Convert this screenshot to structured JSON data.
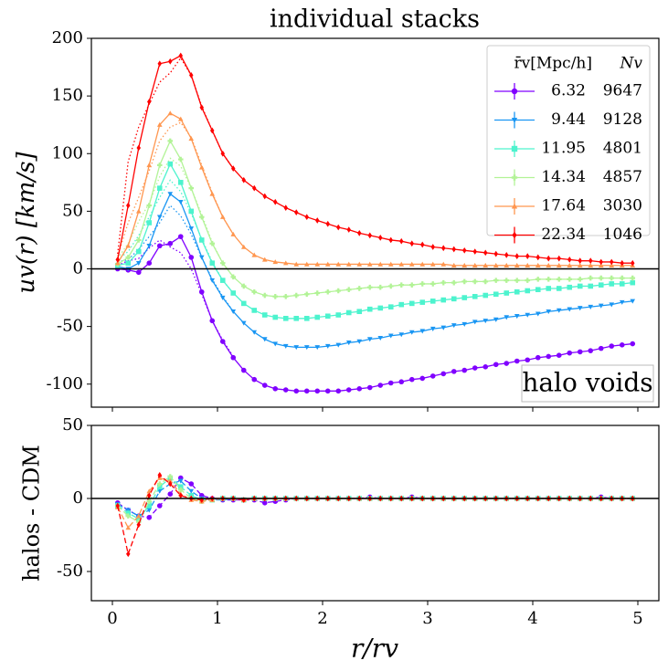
{
  "chart_data": [
    {
      "type": "line",
      "title": "individual stacks",
      "ylabel": "uv(r) [km/s]",
      "annotation": "halo voids",
      "legend_header": [
        "r̄v[Mpc/h]",
        "Nv"
      ],
      "legend": "upper right",
      "xlim": [
        -0.2,
        5.2
      ],
      "xticks": [
        0,
        1,
        2,
        3,
        4,
        5
      ],
      "ylim": [
        -120,
        200
      ],
      "yticks": [
        -100,
        -50,
        0,
        50,
        100,
        150,
        200
      ],
      "hline": 0,
      "x": [
        0.05,
        0.15,
        0.25,
        0.35,
        0.45,
        0.55,
        0.65,
        0.75,
        0.85,
        0.95,
        1.05,
        1.15,
        1.25,
        1.35,
        1.45,
        1.55,
        1.65,
        1.75,
        1.85,
        1.95,
        2.05,
        2.15,
        2.25,
        2.35,
        2.45,
        2.55,
        2.65,
        2.75,
        2.85,
        2.95,
        3.05,
        3.15,
        3.25,
        3.35,
        3.45,
        3.55,
        3.65,
        3.75,
        3.85,
        3.95,
        4.05,
        4.15,
        4.25,
        4.35,
        4.45,
        4.55,
        4.65,
        4.75,
        4.85,
        4.95
      ],
      "series": [
        {
          "name": "6.32",
          "count": "9647",
          "color": "#8000ff",
          "marker": "o",
          "values": [
            0,
            -1,
            -3,
            5,
            20,
            22,
            28,
            10,
            -20,
            -45,
            -63,
            -77,
            -88,
            -96,
            -101,
            -104,
            -105,
            -106,
            -106,
            -106,
            -106,
            -106,
            -105,
            -104,
            -103,
            -101,
            -99,
            -98,
            -96,
            -95,
            -93,
            -91,
            -89,
            -88,
            -86,
            -85,
            -83,
            -82,
            -80,
            -79,
            -77,
            -76,
            -75,
            -73,
            -72,
            -71,
            -69,
            -67,
            -66,
            -65
          ]
        },
        {
          "name": "9.44",
          "count": "9128",
          "color": "#1996f3",
          "marker": "v",
          "values": [
            2,
            0,
            5,
            20,
            45,
            65,
            58,
            35,
            10,
            -10,
            -25,
            -37,
            -47,
            -55,
            -61,
            -65,
            -67,
            -68,
            -68,
            -68,
            -67,
            -66,
            -64,
            -63,
            -61,
            -60,
            -58,
            -57,
            -55,
            -54,
            -52,
            -51,
            -49,
            -48,
            -46,
            -45,
            -44,
            -42,
            -41,
            -40,
            -39,
            -37,
            -36,
            -35,
            -34,
            -33,
            -32,
            -31,
            -29,
            -28
          ]
        },
        {
          "name": "11.95",
          "count": "4801",
          "color": "#4df3ce",
          "marker": "s",
          "values": [
            3,
            5,
            15,
            40,
            70,
            91,
            75,
            50,
            25,
            5,
            -10,
            -21,
            -30,
            -36,
            -40,
            -42,
            -43,
            -43,
            -43,
            -42,
            -41,
            -40,
            -38,
            -37,
            -35,
            -34,
            -33,
            -31,
            -30,
            -29,
            -28,
            -27,
            -26,
            -25,
            -24,
            -23,
            -22,
            -21,
            -20,
            -19,
            -18,
            -17,
            -17,
            -16,
            -15,
            -15,
            -14,
            -13,
            -13,
            -12
          ]
        },
        {
          "name": "14.34",
          "count": "4857",
          "color": "#b2f396",
          "marker": "P",
          "values": [
            4,
            10,
            25,
            55,
            90,
            111,
            95,
            70,
            45,
            22,
            5,
            -7,
            -15,
            -20,
            -23,
            -24,
            -24,
            -23,
            -22,
            -21,
            -20,
            -19,
            -18,
            -17,
            -16,
            -16,
            -15,
            -14,
            -14,
            -13,
            -13,
            -12,
            -12,
            -11,
            -11,
            -11,
            -10,
            -10,
            -10,
            -10,
            -9,
            -9,
            -9,
            -9,
            -9,
            -8,
            -8,
            -8,
            -8,
            -8
          ]
        },
        {
          "name": "17.64",
          "count": "3030",
          "color": "#ff964f",
          "marker": "^",
          "values": [
            5,
            20,
            50,
            90,
            125,
            135,
            130,
            113,
            88,
            65,
            45,
            30,
            19,
            12,
            8,
            6,
            5,
            4,
            4,
            4,
            4,
            4,
            4,
            4,
            4,
            4,
            4,
            4,
            4,
            4,
            4,
            4,
            3,
            3,
            3,
            3,
            3,
            3,
            3,
            3,
            3,
            3,
            3,
            3,
            3,
            3,
            3,
            3,
            3,
            3
          ]
        },
        {
          "name": "22.34",
          "count": "1046",
          "color": "#ff0000",
          "marker": "d",
          "values": [
            8,
            55,
            105,
            145,
            178,
            180,
            185,
            168,
            140,
            120,
            100,
            87,
            77,
            70,
            63,
            58,
            53,
            49,
            45,
            42,
            39,
            36,
            34,
            31,
            29,
            27,
            25,
            24,
            22,
            21,
            19,
            18,
            17,
            16,
            15,
            14,
            13,
            12,
            11,
            11,
            10,
            9,
            9,
            8,
            7,
            7,
            6,
            6,
            5,
            5
          ]
        }
      ],
      "cdm_series": [
        {
          "color": "#8000ff",
          "style": "dotted",
          "x": [
            0.05,
            0.15,
            0.25,
            0.35,
            0.45,
            0.55,
            0.65,
            0.75,
            0.85,
            0.95,
            1.05,
            1.15
          ],
          "values": [
            3,
            7,
            9,
            18,
            25,
            19,
            14,
            0,
            -22,
            -45,
            -62,
            -76
          ]
        },
        {
          "color": "#1996f3",
          "style": "dotted",
          "x": [
            0.05,
            0.15,
            0.25,
            0.35,
            0.45,
            0.55,
            0.65,
            0.75,
            0.85,
            0.95,
            1.05,
            1.15
          ],
          "values": [
            6,
            8,
            17,
            28,
            40,
            55,
            46,
            30,
            10,
            -9,
            -24,
            -37
          ]
        },
        {
          "color": "#4df3ce",
          "style": "dotted",
          "x": [
            0.05,
            0.15,
            0.25,
            0.35,
            0.45,
            0.55,
            0.65,
            0.75,
            0.85,
            0.95,
            1.05,
            1.15
          ],
          "values": [
            8,
            15,
            29,
            45,
            62,
            77,
            67,
            48,
            26,
            6,
            -10,
            -21
          ]
        },
        {
          "color": "#b2f396",
          "style": "dotted",
          "x": [
            0.05,
            0.15,
            0.25,
            0.35,
            0.45,
            0.55,
            0.65,
            0.75,
            0.85,
            0.95,
            1.05,
            1.15
          ],
          "values": [
            9,
            22,
            41,
            57,
            80,
            96,
            89,
            70,
            47,
            23,
            5,
            -7
          ]
        },
        {
          "color": "#ff964f",
          "style": "dotted",
          "x": [
            0.05,
            0.15,
            0.25,
            0.35,
            0.45,
            0.55,
            0.65,
            0.75,
            0.85,
            0.95,
            1.05,
            1.15
          ],
          "values": [
            11,
            40,
            62,
            85,
            111,
            123,
            127,
            114,
            90,
            66,
            45,
            30
          ]
        },
        {
          "color": "#ff0000",
          "style": "dotted",
          "x": [
            0.05,
            0.15,
            0.25,
            0.35,
            0.45,
            0.55,
            0.65,
            0.75,
            0.85,
            0.95,
            1.05,
            1.15
          ],
          "values": [
            13,
            93,
            123,
            143,
            162,
            170,
            183,
            168,
            141,
            120,
            100,
            87
          ]
        }
      ]
    },
    {
      "type": "line",
      "ylabel": "halos - CDM",
      "xlabel": "r/rv",
      "style": "dashed",
      "xlim": [
        -0.2,
        5.2
      ],
      "xticks": [
        0,
        1,
        2,
        3,
        4,
        5
      ],
      "ylim": [
        -70,
        50
      ],
      "yticks": [
        -50,
        0,
        50
      ],
      "hline": 0,
      "x": [
        0.05,
        0.15,
        0.25,
        0.35,
        0.45,
        0.55,
        0.65,
        0.75,
        0.85,
        0.95,
        1.05,
        1.15,
        1.25,
        1.35,
        1.45,
        1.55,
        1.65,
        1.75,
        1.85,
        1.95,
        2.05,
        2.15,
        2.25,
        2.35,
        2.45,
        2.55,
        2.65,
        2.75,
        2.85,
        2.95,
        3.05,
        3.15,
        3.25,
        3.35,
        3.45,
        3.55,
        3.65,
        3.75,
        3.85,
        3.95,
        4.05,
        4.15,
        4.25,
        4.35,
        4.45,
        4.55,
        4.65,
        4.75,
        4.85,
        4.95
      ],
      "series": [
        {
          "color": "#8000ff",
          "marker": "o",
          "values": [
            -3,
            -8,
            -12,
            -13,
            -5,
            3,
            14,
            10,
            2,
            0,
            -1,
            -1,
            -1,
            -1,
            -3,
            -2,
            -1,
            0,
            0,
            0,
            0,
            0,
            0,
            0,
            1,
            0,
            0,
            0,
            1,
            0,
            0,
            0,
            0,
            0,
            0,
            0,
            0,
            0,
            0,
            0,
            0,
            0,
            0,
            0,
            0,
            0,
            1,
            0,
            0,
            0
          ]
        },
        {
          "color": "#1996f3",
          "marker": "v",
          "values": [
            -4,
            -8,
            -12,
            -8,
            5,
            10,
            12,
            5,
            0,
            -1,
            -1,
            0,
            -1,
            0,
            0,
            0,
            0,
            0,
            0,
            0,
            0,
            0,
            0,
            0,
            0,
            0,
            0,
            0,
            0,
            0,
            0,
            0,
            0,
            0,
            0,
            0,
            0,
            0,
            0,
            0,
            0,
            0,
            0,
            0,
            0,
            0,
            0,
            0,
            0,
            0
          ]
        },
        {
          "color": "#4df3ce",
          "marker": "s",
          "values": [
            -5,
            -10,
            -14,
            -5,
            8,
            14,
            8,
            2,
            -1,
            -1,
            0,
            0,
            -1,
            0,
            0,
            0,
            0,
            0,
            0,
            0,
            0,
            0,
            0,
            0,
            0,
            0,
            0,
            0,
            0,
            0,
            0,
            0,
            0,
            0,
            0,
            0,
            0,
            0,
            0,
            0,
            0,
            0,
            0,
            0,
            0,
            0,
            0,
            0,
            0,
            0
          ]
        },
        {
          "color": "#b2f396",
          "marker": "P",
          "values": [
            -5,
            -12,
            -16,
            -2,
            10,
            15,
            6,
            0,
            -2,
            -1,
            0,
            0,
            -1,
            0,
            0,
            0,
            0,
            0,
            0,
            0,
            0,
            0,
            0,
            0,
            0,
            0,
            0,
            0,
            0,
            0,
            0,
            0,
            0,
            0,
            0,
            0,
            0,
            0,
            0,
            0,
            0,
            0,
            0,
            0,
            0,
            0,
            0,
            0,
            0,
            0
          ]
        },
        {
          "color": "#ff964f",
          "marker": "^",
          "values": [
            -6,
            -20,
            -12,
            5,
            14,
            12,
            3,
            -1,
            -2,
            -1,
            0,
            0,
            -1,
            0,
            0,
            0,
            0,
            0,
            0,
            0,
            0,
            0,
            0,
            0,
            0,
            0,
            0,
            0,
            0,
            0,
            0,
            0,
            0,
            0,
            0,
            0,
            0,
            0,
            0,
            0,
            0,
            0,
            0,
            0,
            0,
            0,
            0,
            0,
            0,
            0
          ]
        },
        {
          "color": "#ff0000",
          "marker": "d",
          "values": [
            -5,
            -38,
            -18,
            2,
            16,
            10,
            2,
            0,
            -1,
            0,
            0,
            0,
            -1,
            0,
            0,
            0,
            0,
            0,
            0,
            0,
            0,
            0,
            0,
            0,
            0,
            0,
            0,
            0,
            0,
            0,
            0,
            0,
            0,
            0,
            0,
            0,
            0,
            0,
            0,
            0,
            0,
            0,
            0,
            0,
            0,
            0,
            0,
            0,
            0,
            0
          ]
        }
      ]
    }
  ]
}
